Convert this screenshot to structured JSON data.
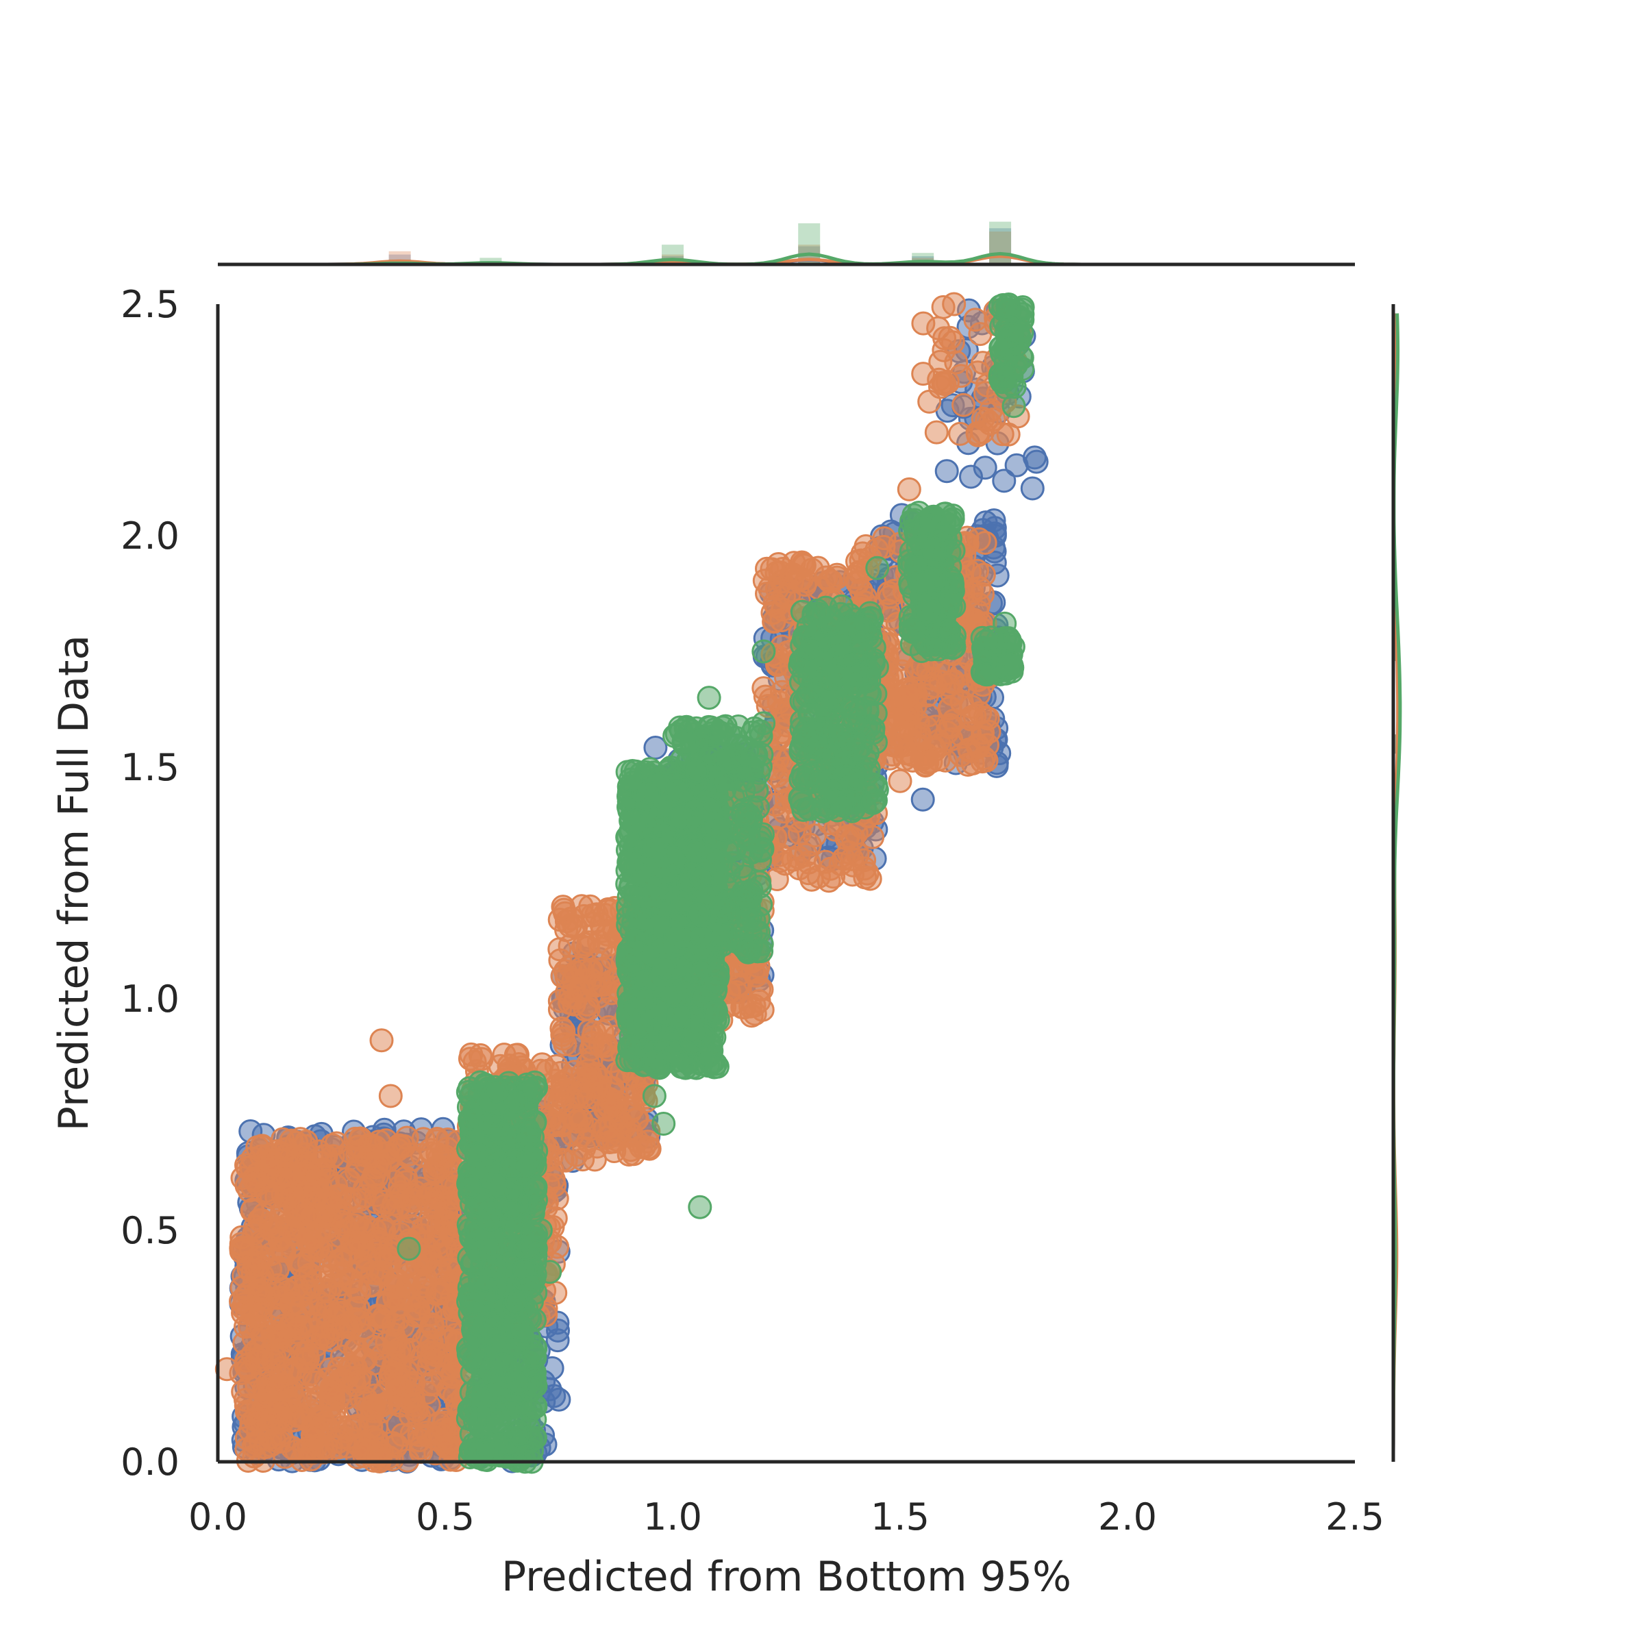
{
  "chart_data": {
    "type": "scatter",
    "subtype": "jointplot",
    "title": "",
    "xlabel": "Predicted from Bottom 95%",
    "ylabel": "Predicted from Full Data",
    "xlim": [
      0.0,
      2.5
    ],
    "ylim": [
      0.0,
      2.5
    ],
    "xticks": [
      "0.0",
      "0.5",
      "1.0",
      "1.5",
      "2.0",
      "2.5"
    ],
    "yticks": [
      "0.0",
      "0.5",
      "1.0",
      "1.5",
      "2.0",
      "2.5"
    ],
    "grid": false,
    "legend": false,
    "marker": "circle",
    "marker_alpha": 0.5,
    "marginals": {
      "top": "histogram-kde",
      "right": "histogram-kde"
    },
    "series": [
      {
        "color": "#4c72b0",
        "clusters": [
          {
            "x": [
              0.05,
              0.55
            ],
            "y": [
              0.0,
              0.72
            ],
            "points": 600
          },
          {
            "x": [
              0.55,
              0.75
            ],
            "y": [
              0.0,
              0.8
            ],
            "points": 120
          },
          {
            "x": [
              0.75,
              0.95
            ],
            "y": [
              0.7,
              1.1
            ],
            "points": 140
          },
          {
            "x": [
              0.95,
              1.2
            ],
            "y": [
              1.0,
              1.55
            ],
            "points": 200
          },
          {
            "x": [
              1.2,
              1.45
            ],
            "y": [
              1.3,
              1.9
            ],
            "points": 160
          },
          {
            "x": [
              1.45,
              1.72
            ],
            "y": [
              1.5,
              2.05
            ],
            "points": 160
          },
          {
            "x": [
              1.6,
              1.8
            ],
            "y": [
              2.1,
              2.5
            ],
            "points": 40
          }
        ],
        "outliers": [
          [
            0.25,
            0.54
          ],
          [
            0.2,
            0.42
          ],
          [
            0.1,
            0.22
          ],
          [
            0.06,
            0.2
          ],
          [
            0.26,
            0.05
          ],
          [
            0.7,
            0.22
          ],
          [
            0.78,
            0.65
          ],
          [
            0.85,
            0.7
          ],
          [
            1.55,
            1.43
          ],
          [
            1.75,
            2.4
          ],
          [
            1.65,
            2.2
          ]
        ]
      },
      {
        "color": "#dd8452",
        "clusters": [
          {
            "x": [
              0.05,
              0.55
            ],
            "y": [
              0.0,
              0.7
            ],
            "points": 900
          },
          {
            "x": [
              0.55,
              0.75
            ],
            "y": [
              0.3,
              0.88
            ],
            "points": 200
          },
          {
            "x": [
              0.75,
              0.95
            ],
            "y": [
              0.65,
              1.2
            ],
            "points": 240
          },
          {
            "x": [
              0.95,
              1.2
            ],
            "y": [
              0.95,
              1.45
            ],
            "points": 260
          },
          {
            "x": [
              1.2,
              1.45
            ],
            "y": [
              1.25,
              1.95
            ],
            "points": 260
          },
          {
            "x": [
              1.4,
              1.7
            ],
            "y": [
              1.5,
              2.0
            ],
            "points": 300
          },
          {
            "x": [
              1.55,
              1.78
            ],
            "y": [
              2.2,
              2.5
            ],
            "points": 50
          }
        ],
        "outliers": [
          [
            0.36,
            0.91
          ],
          [
            0.38,
            0.79
          ],
          [
            0.4,
            0.68
          ],
          [
            0.34,
            0.66
          ],
          [
            0.09,
            0.37
          ],
          [
            0.02,
            0.2
          ],
          [
            0.58,
            0.87
          ],
          [
            0.8,
            1.2
          ],
          [
            1.5,
            1.47
          ],
          [
            1.56,
            1.51
          ],
          [
            1.28,
            1.79
          ],
          [
            1.52,
            2.1
          ],
          [
            1.58,
            1.83
          ],
          [
            0.2,
            0.03
          ]
        ]
      },
      {
        "color": "#55a868",
        "clusters": [
          {
            "x": [
              0.55,
              0.7
            ],
            "y": [
              0.0,
              0.82
            ],
            "points": 700
          },
          {
            "x": [
              0.9,
              1.1
            ],
            "y": [
              0.85,
              1.5
            ],
            "points": 900
          },
          {
            "x": [
              1.0,
              1.2
            ],
            "y": [
              1.1,
              1.6
            ],
            "points": 300
          },
          {
            "x": [
              1.28,
              1.45
            ],
            "y": [
              1.4,
              1.85
            ],
            "points": 300
          },
          {
            "x": [
              1.52,
              1.62
            ],
            "y": [
              1.75,
              2.05
            ],
            "points": 200
          },
          {
            "x": [
              1.68,
              1.75
            ],
            "y": [
              1.7,
              1.78
            ],
            "points": 60
          },
          {
            "x": [
              1.72,
              1.77
            ],
            "y": [
              2.32,
              2.5
            ],
            "points": 60
          }
        ],
        "outliers": [
          [
            0.42,
            0.46
          ],
          [
            0.73,
            0.41
          ],
          [
            0.71,
            0.5
          ],
          [
            0.96,
            0.79
          ],
          [
            0.98,
            0.73
          ],
          [
            1.06,
            0.55
          ],
          [
            1.2,
            1.75
          ],
          [
            1.08,
            1.65
          ],
          [
            1.45,
            1.93
          ],
          [
            1.75,
            2.28
          ],
          [
            1.73,
            1.81
          ],
          [
            1.7,
            1.78
          ],
          [
            0.66,
            0.06
          ],
          [
            0.69,
            0.0
          ]
        ]
      }
    ],
    "marginal_x_bins": [
      {
        "x": 0.4,
        "h": [
          0.06,
          0.08,
          0.03
        ]
      },
      {
        "x": 0.6,
        "h": [
          0.02,
          0.01,
          0.04
        ]
      },
      {
        "x": 1.0,
        "h": [
          0.05,
          0.06,
          0.12
        ]
      },
      {
        "x": 1.3,
        "h": [
          0.11,
          0.12,
          0.25
        ]
      },
      {
        "x": 1.55,
        "h": [
          0.05,
          0.04,
          0.07
        ]
      },
      {
        "x": 1.72,
        "h": [
          0.22,
          0.2,
          0.26
        ]
      }
    ],
    "marginal_y_bins": [
      {
        "y": 0.45,
        "h": [
          0.06,
          0.08,
          0.05
        ]
      },
      {
        "y": 1.1,
        "h": [
          0.03,
          0.04,
          0.03
        ]
      },
      {
        "y": 1.55,
        "h": [
          0.1,
          0.08,
          0.12
        ]
      },
      {
        "y": 1.75,
        "h": [
          0.08,
          0.06,
          0.09
        ]
      },
      {
        "y": 2.4,
        "h": [
          0.09,
          0.08,
          0.11
        ]
      }
    ]
  }
}
